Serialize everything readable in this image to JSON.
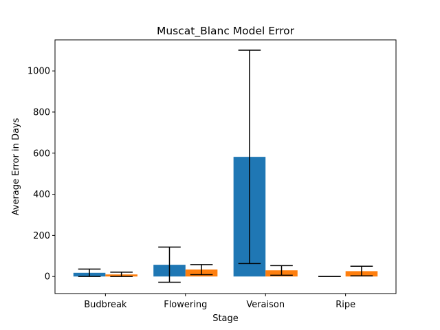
{
  "chart_data": {
    "type": "bar",
    "title": "Muscat_Blanc Model Error",
    "xlabel": "Stage",
    "ylabel": "Average Error in Days",
    "categories": [
      "Budbreak",
      "Flowering",
      "Veraison",
      "Ripe"
    ],
    "ylim": [
      -83,
      1151
    ],
    "yticks": [
      0,
      200,
      400,
      600,
      800,
      1000
    ],
    "series": [
      {
        "color": "#1f77b4",
        "values": [
          18,
          57,
          582,
          0
        ],
        "error_low": [
          0,
          -28,
          63,
          0
        ],
        "error_high": [
          36,
          143,
          1101,
          0
        ]
      },
      {
        "color": "#ff7f0e",
        "values": [
          10,
          34,
          30,
          26
        ],
        "error_low": [
          0,
          9,
          6,
          3
        ],
        "error_high": [
          21,
          58,
          53,
          50
        ]
      }
    ],
    "grid": false,
    "legend": "none"
  }
}
